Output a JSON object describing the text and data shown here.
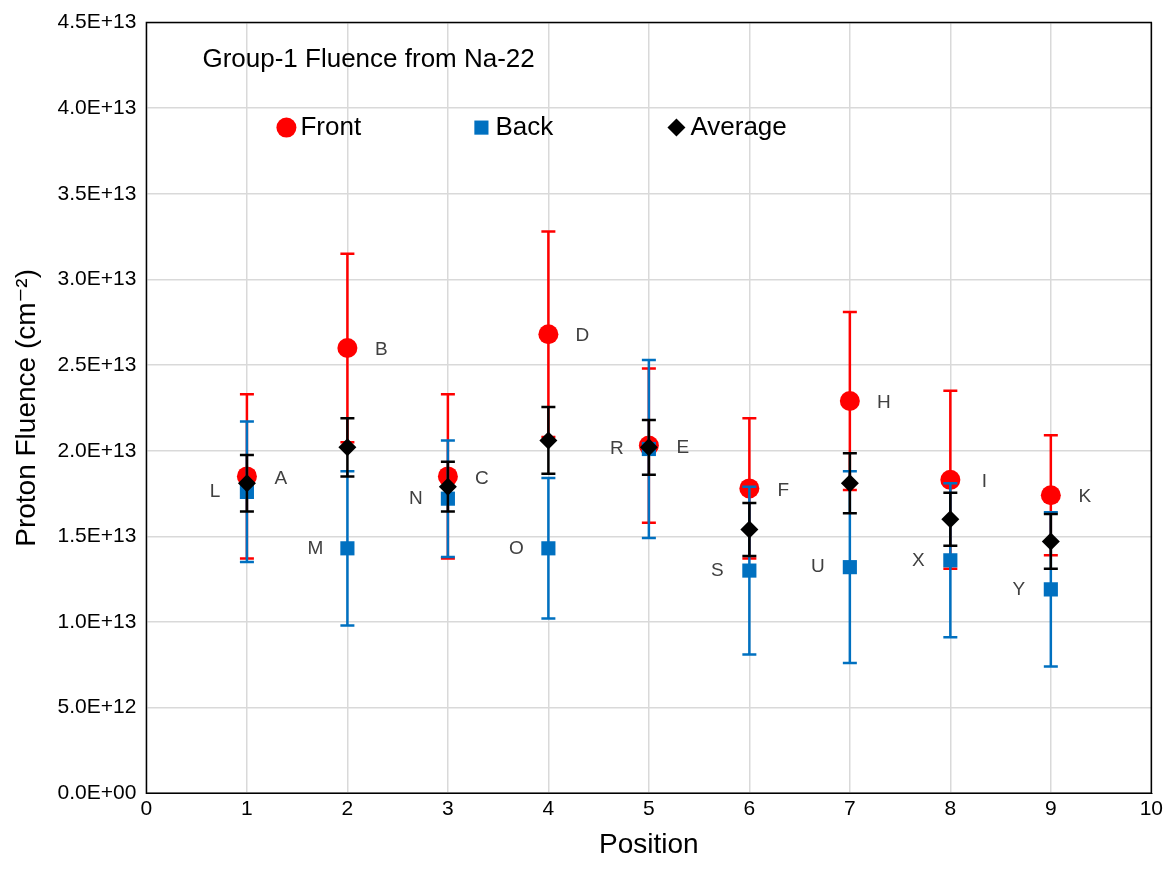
{
  "chart_data": {
    "type": "scatter",
    "title": "Group-1 Fluence from Na-22",
    "xlabel": "Position",
    "ylabel": "Proton Fluence (cm⁻²)",
    "x": [
      1,
      2,
      3,
      4,
      5,
      6,
      7,
      8,
      9
    ],
    "series": [
      {
        "name": "Front",
        "color": "#ff0000",
        "marker": "circle",
        "values": [
          18500000000000.0,
          26000000000000.0,
          18500000000000.0,
          26800000000000.0,
          20300000000000.0,
          17800000000000.0,
          22900000000000.0,
          18300000000000.0,
          17400000000000.0
        ],
        "errors": [
          4800000000000.0,
          5500000000000.0,
          4800000000000.0,
          6000000000000.0,
          4500000000000.0,
          4100000000000.0,
          5200000000000.0,
          5200000000000.0,
          3500000000000.0
        ]
      },
      {
        "name": "Back",
        "color": "#0070c0",
        "marker": "square",
        "values": [
          17600000000000.0,
          14300000000000.0,
          17200000000000.0,
          14300000000000.0,
          20100000000000.0,
          13000000000000.0,
          13200000000000.0,
          13600000000000.0,
          11900000000000.0
        ],
        "errors": [
          4100000000000.0,
          4500000000000.0,
          3400000000000.0,
          4100000000000.0,
          5200000000000.0,
          4900000000000.0,
          5600000000000.0,
          4500000000000.0,
          4500000000000.0
        ]
      },
      {
        "name": "Average",
        "color": "#000000",
        "marker": "diamond",
        "values": [
          18100000000000.0,
          20200000000000.0,
          17900000000000.0,
          20600000000000.0,
          20200000000000.0,
          15400000000000.0,
          18100000000000.0,
          16000000000000.0,
          14700000000000.0
        ],
        "errors": [
          1650000000000.0,
          1700000000000.0,
          1450000000000.0,
          1950000000000.0,
          1600000000000.0,
          1550000000000.0,
          1750000000000.0,
          1550000000000.0,
          1600000000000.0
        ]
      }
    ],
    "xlim": [
      0,
      10
    ],
    "xticks": [
      0,
      1,
      2,
      3,
      4,
      5,
      6,
      7,
      8,
      9,
      10
    ],
    "ylim": [
      0,
      45000000000000.0
    ],
    "yticks": [
      {
        "value": 0,
        "label": "0.0E+00"
      },
      {
        "value": 5000000000000.0,
        "label": "5.0E+12"
      },
      {
        "value": 10000000000000.0,
        "label": "1.0E+13"
      },
      {
        "value": 15000000000000.0,
        "label": "1.5E+13"
      },
      {
        "value": 20000000000000.0,
        "label": "2.0E+13"
      },
      {
        "value": 25000000000000.0,
        "label": "2.5E+13"
      },
      {
        "value": 30000000000000.0,
        "label": "3.0E+13"
      },
      {
        "value": 35000000000000.0,
        "label": "3.5E+13"
      },
      {
        "value": 40000000000000.0,
        "label": "4.0E+13"
      },
      {
        "value": 45000000000000.0,
        "label": "4.5E+13"
      }
    ],
    "grid": true,
    "legend": "top",
    "annotations": [
      {
        "text": "A",
        "x": 1,
        "y": 18500000000000.0
      },
      {
        "text": "B",
        "x": 2,
        "y": 26000000000000.0
      },
      {
        "text": "C",
        "x": 3,
        "y": 18500000000000.0
      },
      {
        "text": "D",
        "x": 4,
        "y": 26800000000000.0
      },
      {
        "text": "E",
        "x": 5,
        "y": 20300000000000.0
      },
      {
        "text": "F",
        "x": 6,
        "y": 17800000000000.0
      },
      {
        "text": "H",
        "x": 7,
        "y": 22900000000000.0
      },
      {
        "text": "I",
        "x": 8,
        "y": 18300000000000.0
      },
      {
        "text": "K",
        "x": 9,
        "y": 17400000000000.0
      },
      {
        "text": "L",
        "x": 1,
        "y": 17600000000000.0
      },
      {
        "text": "M",
        "x": 2,
        "y": 14300000000000.0
      },
      {
        "text": "N",
        "x": 3,
        "y": 17200000000000.0
      },
      {
        "text": "O",
        "x": 4,
        "y": 14300000000000.0
      },
      {
        "text": "R",
        "x": 5,
        "y": 20100000000000.0
      },
      {
        "text": "S",
        "x": 6,
        "y": 13000000000000.0
      },
      {
        "text": "U",
        "x": 7,
        "y": 13200000000000.0
      },
      {
        "text": "X",
        "x": 8,
        "y": 13600000000000.0
      },
      {
        "text": "Y",
        "x": 9,
        "y": 11900000000000.0
      }
    ]
  }
}
